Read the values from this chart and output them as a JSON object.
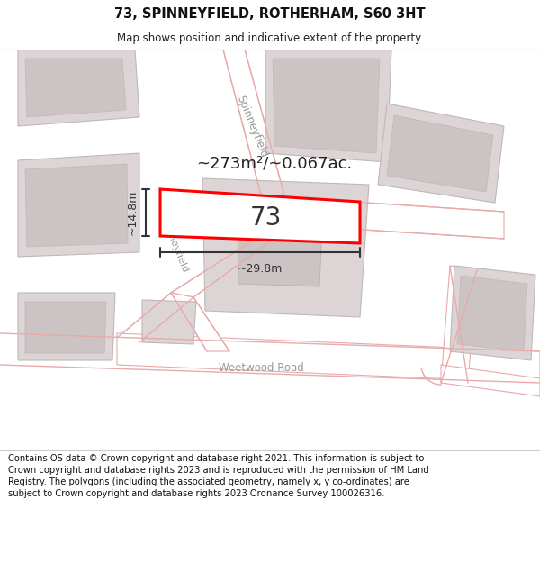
{
  "title": "73, SPINNEYFIELD, ROTHERHAM, S60 3HT",
  "subtitle": "Map shows position and indicative extent of the property.",
  "footer": "Contains OS data © Crown copyright and database right 2021. This information is subject to Crown copyright and database rights 2023 and is reproduced with the permission of HM Land Registry. The polygons (including the associated geometry, namely x, y co-ordinates) are subject to Crown copyright and database rights 2023 Ordnance Survey 100026316.",
  "area_label": "~273m²/~0.067ac.",
  "number_label": "73",
  "width_label": "~29.8m",
  "height_label": "~14.8m",
  "map_bg": "#f5eeee",
  "road_fill": "#ffffff",
  "road_edge": "#e8aaaa",
  "block_fill": "#ddd5d5",
  "block_edge": "#c0b8b8",
  "inner_fill": "#ccc4c4",
  "plot_fill": "#ffffff",
  "plot_edge": "#ff0000",
  "dim_color": "#333333",
  "label_color": "#222222",
  "road_label_color": "#999999",
  "title_fontsize": 10.5,
  "subtitle_fontsize": 8.5,
  "footer_fontsize": 7.2,
  "area_fontsize": 13,
  "number_fontsize": 20,
  "dim_fontsize": 9,
  "road_label_fontsize": 8.5
}
